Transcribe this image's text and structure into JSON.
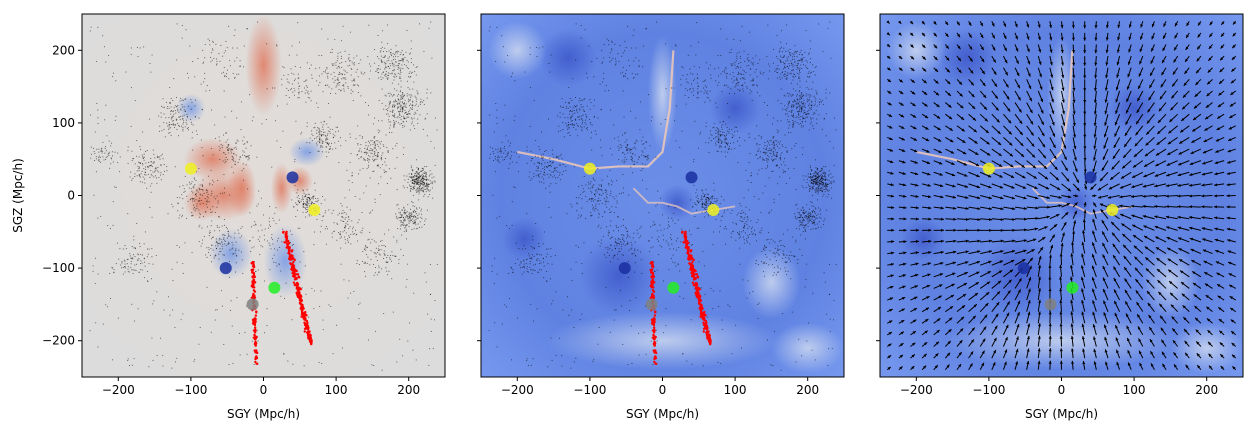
{
  "chart_data": [
    {
      "type": "scatter",
      "panel": "density",
      "xlabel": "SGY (Mpc/h)",
      "ylabel": "SGZ (Mpc/h)",
      "xlim": [
        -250,
        250
      ],
      "ylim": [
        -250,
        250
      ],
      "xticks": [
        -200,
        -100,
        0,
        100,
        200
      ],
      "yticks": [
        -200,
        -100,
        0,
        100,
        200
      ],
      "background": "diverging colormap (coolwarm), near-neutral grey with red overdensities and blue underdensities",
      "overlays": [
        "black galaxy point cloud",
        "red point trail"
      ],
      "markers": [
        {
          "color": "#f0f020",
          "x": -100,
          "y": 37
        },
        {
          "color": "#1a2fa0",
          "x": 40,
          "y": 25
        },
        {
          "color": "#f0f020",
          "x": 70,
          "y": -20
        },
        {
          "color": "#1a2fa0",
          "x": -52,
          "y": -100
        },
        {
          "color": "#22ee22",
          "x": 15,
          "y": -127
        },
        {
          "color": "#808080",
          "x": -15,
          "y": -150
        }
      ],
      "red_trails": [
        {
          "start": [
            -15,
            -90
          ],
          "end": [
            -10,
            -240
          ]
        },
        {
          "start": [
            30,
            -50
          ],
          "end": [
            65,
            -205
          ]
        }
      ]
    },
    {
      "type": "scatter",
      "panel": "potential",
      "xlabel": "SGY (Mpc/h)",
      "ylabel": "",
      "xlim": [
        -250,
        250
      ],
      "ylim": [
        -250,
        250
      ],
      "xticks": [
        -200,
        -100,
        0,
        100,
        200
      ],
      "yticks": [
        -200,
        -100,
        0,
        100,
        200
      ],
      "background": "diverging colormap (coolwarm), mostly blue with pale ridges",
      "overlays": [
        "black galaxy point cloud",
        "red point trail"
      ],
      "markers": [
        {
          "color": "#f0f020",
          "x": -100,
          "y": 37
        },
        {
          "color": "#1a2fa0",
          "x": 40,
          "y": 25
        },
        {
          "color": "#f0f020",
          "x": 70,
          "y": -20
        },
        {
          "color": "#1a2fa0",
          "x": -52,
          "y": -100
        },
        {
          "color": "#22ee22",
          "x": 15,
          "y": -127
        },
        {
          "color": "#808080",
          "x": -15,
          "y": -150
        }
      ]
    },
    {
      "type": "scatter",
      "panel": "velocity",
      "xlabel": "SGY (Mpc/h)",
      "ylabel": "",
      "xlim": [
        -250,
        250
      ],
      "ylim": [
        -250,
        250
      ],
      "xticks": [
        -200,
        -100,
        0,
        100,
        200
      ],
      "yticks": [
        -200,
        -100,
        0,
        100,
        200
      ],
      "background": "diverging colormap (coolwarm), mostly blue with pale ridges",
      "overlays": [
        "black velocity arrow field"
      ],
      "markers": [
        {
          "color": "#f0f020",
          "x": -100,
          "y": 37
        },
        {
          "color": "#1a2fa0",
          "x": 40,
          "y": 25
        },
        {
          "color": "#f0f020",
          "x": 70,
          "y": -20
        },
        {
          "color": "#1a2fa0",
          "x": -52,
          "y": -100
        },
        {
          "color": "#22ee22",
          "x": 15,
          "y": -127
        },
        {
          "color": "#808080",
          "x": -15,
          "y": -150
        }
      ]
    }
  ]
}
